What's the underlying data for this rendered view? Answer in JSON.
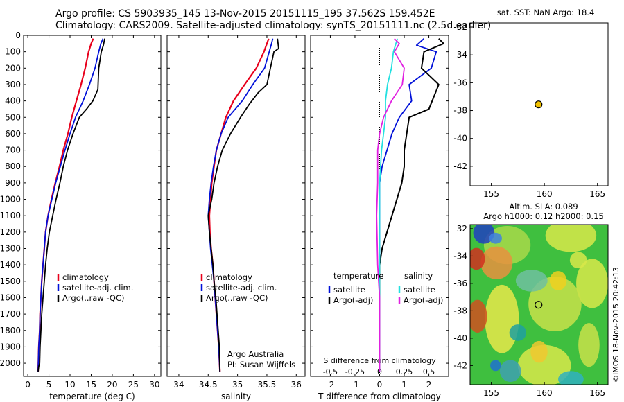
{
  "header": {
    "line1": "Argo profile: CS 5903935_145 13-Nov-2015 20151115_195 37.562S 159.452E",
    "line2": "Climatology: CARS2009. Satellite-adjusted climatology: synTS_20151111.nc (2.5d earlier)"
  },
  "stamp": "©IMOS 18-Nov-2015 20:42:13",
  "colors": {
    "climatology": "#e8001c",
    "satellite": "#0010d8",
    "argo": "#000000",
    "salinity_satellite": "#22e0e0",
    "salinity_argo": "#e020e0",
    "float_marker": "#f0c000"
  },
  "chart_data": [
    {
      "type": "line",
      "xlabel": "temperature (deg C)",
      "ylabel": "",
      "xlim": [
        -1,
        31.5
      ],
      "ylim": [
        2080,
        0
      ],
      "xticks": [
        0,
        5,
        10,
        15,
        20,
        25,
        30
      ],
      "yticks": [
        0,
        100,
        200,
        300,
        400,
        500,
        600,
        700,
        800,
        900,
        1000,
        1100,
        1200,
        1300,
        1400,
        1500,
        1600,
        1700,
        1800,
        1900,
        2000
      ],
      "legend_position": "bottom-middle",
      "series": [
        {
          "name": "climatology",
          "x": [
            15.5,
            15.0,
            14.4,
            13.6,
            12.6,
            11.5,
            10.4,
            9.5,
            8.4,
            7.5,
            6.5,
            5.6,
            4.8,
            4.2,
            3.9,
            3.6,
            3.3,
            3.1,
            2.9,
            2.8,
            2.6,
            2.5,
            2.45
          ],
          "y": [
            20,
            50,
            100,
            200,
            300,
            400,
            500,
            600,
            700,
            800,
            900,
            1000,
            1100,
            1200,
            1300,
            1400,
            1500,
            1600,
            1700,
            1800,
            1900,
            2000,
            2050
          ]
        },
        {
          "name": "satellite-adj. clim.",
          "x": [
            17.8,
            17.3,
            16.8,
            15.9,
            14.6,
            13.1,
            11.3,
            10.0,
            8.8,
            7.7,
            6.6,
            5.7,
            4.8,
            4.2,
            3.9,
            3.6,
            3.3,
            3.1,
            2.9,
            2.8,
            2.6,
            2.5,
            2.45
          ],
          "y": [
            20,
            50,
            100,
            200,
            300,
            400,
            500,
            600,
            700,
            800,
            900,
            1000,
            1100,
            1200,
            1300,
            1400,
            1500,
            1600,
            1700,
            1800,
            1900,
            2000,
            2050
          ]
        },
        {
          "name": "Argo(..raw -QC)",
          "x": [
            18.2,
            17.9,
            17.4,
            16.8,
            16.6,
            15.4,
            13.9,
            12.2,
            10.7,
            9.4,
            8.4,
            7.6,
            6.7,
            5.9,
            5.1,
            4.6,
            4.2,
            3.9,
            3.6,
            3.3,
            3.1,
            2.9,
            2.8,
            2.6,
            2.5,
            2.45
          ],
          "y": [
            20,
            60,
            100,
            200,
            330,
            400,
            450,
            500,
            600,
            700,
            800,
            900,
            1000,
            1100,
            1200,
            1300,
            1400,
            1500,
            1600,
            1700,
            1800,
            1900,
            2000,
            2020,
            2040,
            2050
          ]
        }
      ]
    },
    {
      "type": "line",
      "xlabel": "salinity",
      "ylabel": "",
      "xlim": [
        33.8,
        36.15
      ],
      "ylim": [
        2080,
        0
      ],
      "xticks": [
        34,
        34.5,
        35,
        35.5,
        36
      ],
      "xtick_labels": [
        "34",
        "34.5",
        "35",
        "35.5",
        "36"
      ],
      "annotations": [
        "Argo Australia",
        "PI: Susan Wijffels"
      ],
      "series": [
        {
          "name": "climatology",
          "x": [
            35.53,
            35.5,
            35.45,
            35.32,
            35.12,
            34.93,
            34.8,
            34.72,
            34.64,
            34.6,
            34.56,
            34.54,
            34.52,
            34.53,
            34.55,
            34.58,
            34.6,
            34.62,
            34.64,
            34.66,
            34.68,
            34.7
          ],
          "y": [
            20,
            50,
            100,
            200,
            300,
            400,
            500,
            600,
            700,
            800,
            900,
            1000,
            1100,
            1200,
            1300,
            1400,
            1500,
            1600,
            1700,
            1800,
            1900,
            2050
          ]
        },
        {
          "name": "satellite-adj. clim.",
          "x": [
            35.6,
            35.58,
            35.54,
            35.46,
            35.26,
            35.08,
            34.84,
            34.72,
            34.64,
            34.59,
            34.55,
            34.52,
            34.5,
            34.52,
            34.54,
            34.57,
            34.6,
            34.62,
            34.64,
            34.66,
            34.68,
            34.7
          ],
          "y": [
            20,
            50,
            100,
            200,
            300,
            400,
            500,
            600,
            700,
            800,
            900,
            1000,
            1100,
            1200,
            1300,
            1400,
            1500,
            1600,
            1700,
            1800,
            1900,
            2050
          ]
        },
        {
          "name": "Argo(..raw -QC)",
          "x": [
            35.68,
            35.7,
            35.62,
            35.56,
            35.5,
            35.35,
            35.2,
            35.05,
            34.88,
            34.74,
            34.66,
            34.6,
            34.56,
            34.53,
            34.5,
            34.52,
            34.55,
            34.58,
            34.6,
            34.63,
            34.65,
            34.67,
            34.69,
            34.7
          ],
          "y": [
            20,
            80,
            100,
            200,
            300,
            350,
            420,
            500,
            600,
            700,
            800,
            900,
            1000,
            1050,
            1100,
            1200,
            1300,
            1400,
            1500,
            1600,
            1700,
            1800,
            1900,
            2050
          ]
        }
      ]
    },
    {
      "type": "line",
      "xlabel": "T difference from climatology",
      "xlabel_top": "S difference from climatology",
      "xlim": [
        -2.8,
        2.8
      ],
      "ylim": [
        2080,
        0
      ],
      "xticks": [
        -2,
        -1,
        0,
        1,
        2
      ],
      "xtick_labels": [
        "-2",
        "-1",
        "0",
        "1",
        "2"
      ],
      "xticks_top": [
        -0.5,
        -0.25,
        0,
        0.25,
        0.5
      ],
      "xtick_labels_top": [
        "-0.5",
        "-0.25",
        "0",
        "0.25",
        "0.5"
      ],
      "legend_groups": [
        {
          "title": "temperature",
          "entries": [
            "satellite",
            "Argo(-adj)"
          ]
        },
        {
          "title": "salinity",
          "entries": [
            "satellite",
            "Argo(-adj)"
          ]
        }
      ],
      "series": [
        {
          "name": "temperature satellite",
          "x": [
            1.8,
            1.5,
            2.3,
            2.1,
            1.2,
            1.3,
            0.8,
            0.5,
            0.3,
            0.1,
            0.0,
            0.0,
            0.0,
            0.0,
            0.0,
            0.0,
            0.0,
            0.0
          ],
          "y": [
            20,
            60,
            100,
            200,
            300,
            400,
            500,
            600,
            700,
            800,
            900,
            1000,
            1200,
            1400,
            1600,
            1800,
            2000,
            2050
          ]
        },
        {
          "name": "temperature Argo(-adj)",
          "x": [
            2.4,
            2.6,
            1.8,
            1.7,
            2.4,
            2.0,
            1.2,
            1.1,
            1.0,
            1.0,
            0.9,
            0.5,
            0.3,
            0.1,
            0.0,
            0.0,
            0.0,
            0.0,
            0.0
          ],
          "y": [
            20,
            50,
            100,
            200,
            300,
            450,
            500,
            600,
            700,
            800,
            900,
            1100,
            1200,
            1300,
            1400,
            1600,
            1800,
            2000,
            2050
          ]
        },
        {
          "name": "salinity satellite",
          "x": [
            0.18,
            0.14,
            0.12,
            0.08,
            0.06,
            0.06,
            0.04,
            0.02,
            0.01,
            0.0,
            0.0,
            0.0,
            0.0,
            0.0
          ],
          "y": [
            20,
            100,
            200,
            300,
            400,
            500,
            600,
            700,
            800,
            900,
            1000,
            1200,
            1600,
            2050
          ]
        },
        {
          "name": "salinity Argo(-adj)",
          "x": [
            0.15,
            0.2,
            0.15,
            0.25,
            0.23,
            0.12,
            0.04,
            0.0,
            -0.02,
            -0.02,
            -0.03,
            -0.02,
            0.0,
            0.0
          ],
          "y": [
            20,
            50,
            100,
            200,
            300,
            400,
            500,
            600,
            700,
            900,
            1100,
            1400,
            1600,
            2050
          ]
        }
      ]
    },
    {
      "type": "scatter",
      "title": "sat. SST: NaN Argo: 18.4",
      "xlim": [
        153,
        166
      ],
      "ylim": [
        -43.4,
        -31.7
      ],
      "xticks": [
        155,
        160,
        165
      ],
      "yticks": [
        -32,
        -34,
        -36,
        -38,
        -40,
        -42
      ],
      "points": [
        {
          "x": 159.45,
          "y": -37.56
        }
      ]
    },
    {
      "type": "heatmap",
      "title_line1": "Altim. SLA: 0.089",
      "title_line2": "Argo h1000: 0.12 h2000: 0.15",
      "xlim": [
        153,
        166
      ],
      "ylim": [
        -43.4,
        -31.7
      ],
      "xticks": [
        155,
        160,
        165
      ],
      "yticks": [
        -32,
        -34,
        -36,
        -38,
        -40,
        -42
      ],
      "points": [
        {
          "x": 159.45,
          "y": -37.56
        }
      ]
    }
  ]
}
